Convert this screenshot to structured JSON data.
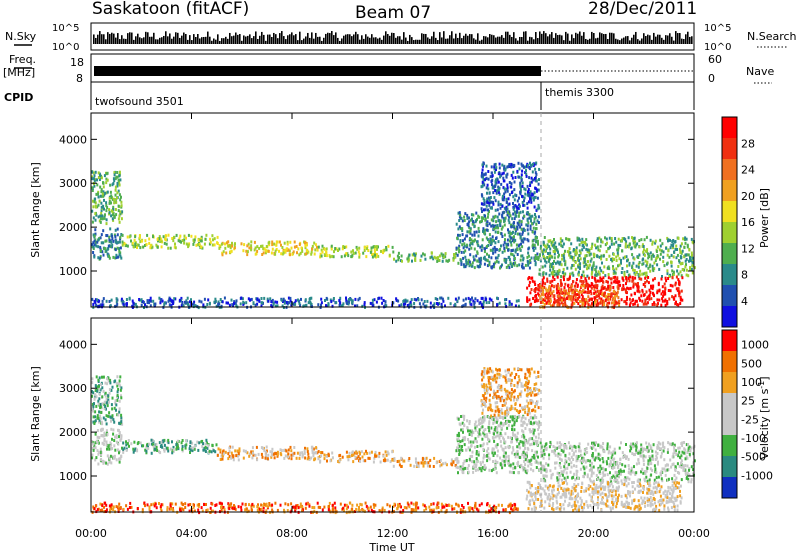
{
  "header": {
    "station": "Saskatoon (fitACF)",
    "beam": "Beam 07",
    "date": "28/Dec/2011"
  },
  "noise_panel": {
    "left_label": "N.Sky",
    "right_label": "N.Search",
    "y_tick_top": "10^5",
    "y_tick_bottom": "10^0"
  },
  "freq_panel": {
    "left_label_line1": "Freq.",
    "left_label_line2": "[MHz]",
    "right_label": "Nave",
    "left_tick_top": "18",
    "left_tick_bottom": "8",
    "right_tick_top": "60",
    "right_tick_bottom": "0"
  },
  "cpid_panel": {
    "label": "CPID",
    "modes": [
      {
        "name": "twofsound 3501",
        "start_hour": 0
      },
      {
        "name": "themis 3300",
        "start_hour": 18
      }
    ]
  },
  "chart_data": [
    {
      "type": "heatmap",
      "name": "power",
      "ylabel": "Slant Range [km]",
      "ylim": [
        180,
        4600
      ],
      "yticks": [
        "1000",
        "2000",
        "3000",
        "4000"
      ],
      "x_hours": [
        0,
        24
      ],
      "colorbar_label": "Power [dB]",
      "colorbar_ticks": [
        "4",
        "8",
        "12",
        "16",
        "20",
        "24",
        "28"
      ],
      "colors": [
        "#1010e0",
        "#2050b0",
        "#2a8a8a",
        "#4fae4f",
        "#9fd030",
        "#f0e020",
        "#f0a020",
        "#f07020",
        "#f03010",
        "#ff0000"
      ],
      "segments_hours_km_level": [
        [
          0,
          1.2,
          2100,
          3300,
          3
        ],
        [
          0,
          1.2,
          1300,
          2000,
          2
        ],
        [
          1.2,
          5,
          1550,
          1850,
          4
        ],
        [
          5,
          9,
          1400,
          1700,
          5
        ],
        [
          9,
          12,
          1350,
          1600,
          4
        ],
        [
          12,
          14.5,
          1250,
          1450,
          3
        ],
        [
          14.5,
          17.8,
          1100,
          2400,
          2
        ],
        [
          15.5,
          17.8,
          2400,
          3500,
          1
        ],
        [
          17.8,
          24,
          900,
          1800,
          3
        ],
        [
          17.3,
          23.5,
          250,
          900,
          9
        ],
        [
          17.8,
          21,
          200,
          700,
          7
        ],
        [
          0,
          17,
          200,
          420,
          1
        ]
      ]
    },
    {
      "type": "heatmap",
      "name": "velocity",
      "ylabel": "Slant Range [km]",
      "ylim": [
        180,
        4600
      ],
      "yticks": [
        "1000",
        "2000",
        "3000",
        "4000"
      ],
      "x_hours": [
        0,
        24
      ],
      "xticks": [
        "00:00",
        "04:00",
        "08:00",
        "12:00",
        "16:00",
        "20:00",
        "00:00"
      ],
      "xlabel": "Time UT",
      "colorbar_label": "Velocity [m s^-1]",
      "colorbar_ticks": [
        "1000",
        "500",
        "100",
        "25",
        "-25",
        "-100",
        "-500",
        "-1000"
      ],
      "colors": [
        "#1030c0",
        "#2a8a80",
        "#40b040",
        "#c8c8c8",
        "#c8c8c8",
        "#f0a020",
        "#f07000",
        "#ff0000"
      ],
      "segments_hours_km_level": [
        [
          0,
          1.2,
          1300,
          2100,
          3
        ],
        [
          0,
          1.2,
          2200,
          3300,
          2
        ],
        [
          1.2,
          5,
          1550,
          1850,
          2
        ],
        [
          5,
          9,
          1400,
          1700,
          5
        ],
        [
          9,
          12,
          1350,
          1600,
          5
        ],
        [
          12,
          14.5,
          1250,
          1450,
          5
        ],
        [
          14.5,
          17.8,
          1100,
          2400,
          3
        ],
        [
          15.5,
          17.8,
          2400,
          3500,
          5
        ],
        [
          17.8,
          24,
          900,
          1800,
          3
        ],
        [
          17.3,
          23.5,
          250,
          900,
          4
        ],
        [
          0,
          17,
          200,
          420,
          6
        ]
      ]
    }
  ]
}
